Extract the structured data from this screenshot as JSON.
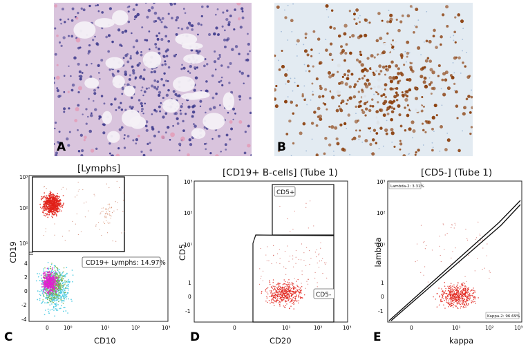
{
  "panels": {
    "a": {
      "letter": "A"
    },
    "b": {
      "letter": "B"
    },
    "c": {
      "letter": "C",
      "title": "[Lymphs]",
      "xlabel": "CD10",
      "ylabel": "CD19",
      "gate_label": "CD19+ Lymphs: 14.97%",
      "xticks": [
        "0",
        "10⁰",
        "10¹",
        "10²",
        "10³"
      ],
      "yticks_top": [
        "10³",
        "10²",
        "10¹"
      ],
      "yticks_bottom": [
        "4",
        "2",
        "0",
        "-2",
        "-4"
      ]
    },
    "d": {
      "letter": "D",
      "title": "[CD19+ B-cells] (Tube 1)",
      "xlabel": "CD20",
      "ylabel": "CD5",
      "gate_top": "CD5+",
      "gate_bottom": "CD5-",
      "xticks": [
        "0",
        "10¹",
        "10²",
        "10³"
      ],
      "yticks": [
        "10³",
        "10²",
        "10¹",
        "1",
        "0",
        "-1"
      ]
    },
    "e": {
      "letter": "E",
      "title": "[CD5-] (Tube 1)",
      "xlabel": "kappa",
      "ylabel": "lambda",
      "gate_top": "Lambda-2: 3.31%",
      "gate_bottom": "Kappa-2: 96.69%",
      "xticks": [
        "0",
        "10¹",
        "10²",
        "10³"
      ],
      "yticks": [
        "10³",
        "10²",
        "10¹",
        "1",
        "0",
        "-1"
      ]
    }
  },
  "colors": {
    "he_background": "#d9c4dd",
    "he_cells": "#3d3a8c",
    "he_eosin": "#e39ab5",
    "ihc_background": "#e3ebf2",
    "ihc_stain": "#8a3e0c",
    "dots_red": "#e02018",
    "dots_magenta": "#e020d0",
    "dots_cyan": "#40c8e0",
    "dots_green": "#7ab040"
  }
}
